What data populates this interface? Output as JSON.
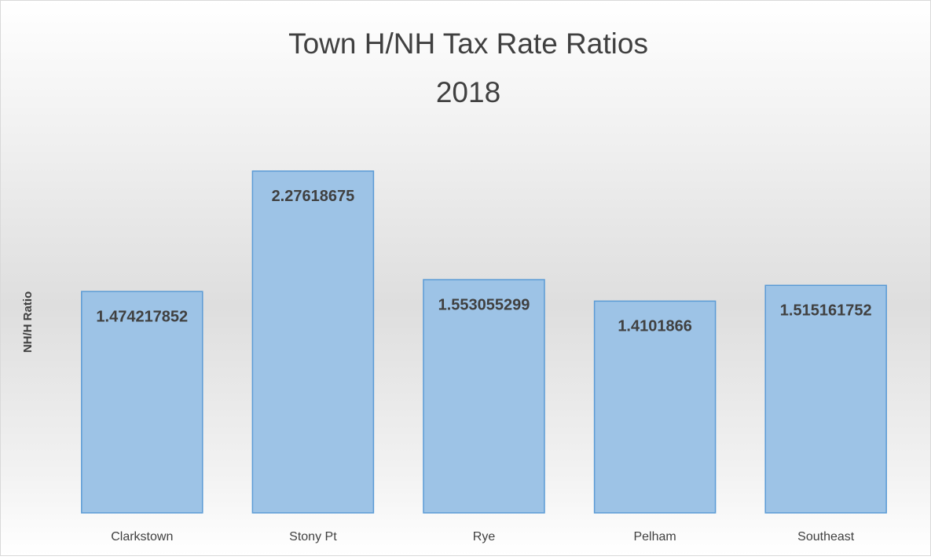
{
  "chart_data": {
    "type": "bar",
    "title": "Town H/NH Tax Rate Ratios",
    "subtitle": "2018",
    "y_label": "NH/H Ratio",
    "categories": [
      "Clarkstown",
      "Stony Pt",
      "Rye",
      "Pelham",
      "Southeast"
    ],
    "values": [
      1.474217852,
      2.27618675,
      1.553055299,
      1.4101866,
      1.515161752
    ],
    "color": "#9dc3e6",
    "ylim": [
      0,
      2.5
    ]
  }
}
